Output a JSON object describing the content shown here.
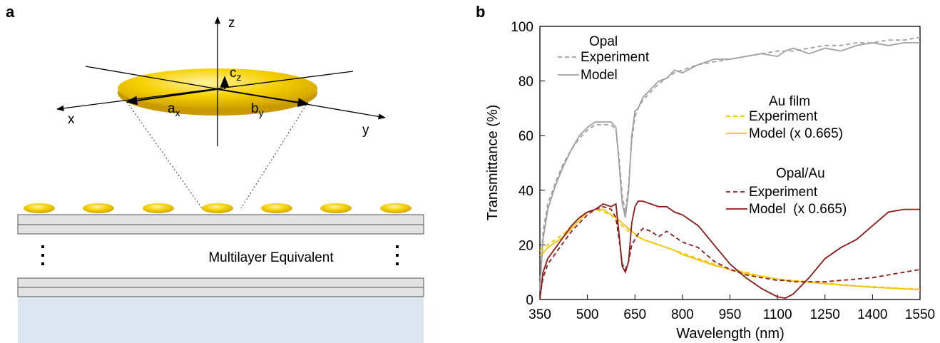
{
  "panel_a": {
    "label": "a",
    "axis_z": "z",
    "axis_x": "x",
    "axis_y": "y",
    "semi_axis_c": {
      "main": "c",
      "sub": "z"
    },
    "semi_axis_a": {
      "main": "a",
      "sub": "x"
    },
    "semi_axis_b": {
      "main": "b",
      "sub": "y"
    },
    "caption": "Multilayer Equivalent"
  },
  "chart_data": {
    "type": "line",
    "panel_label": "b",
    "x_label": "Wavelength (nm)",
    "y_label": "Transmittance (%)",
    "xlim": [
      350,
      1550
    ],
    "xticks": [
      350,
      500,
      650,
      800,
      950,
      1100,
      1250,
      1400,
      1550
    ],
    "ylim": [
      0,
      100
    ],
    "yticks": [
      0,
      20,
      40,
      60,
      80,
      100
    ],
    "x": [
      350,
      360,
      375,
      400,
      425,
      450,
      475,
      500,
      525,
      550,
      575,
      590,
      600,
      610,
      620,
      630,
      640,
      650,
      660,
      675,
      700,
      725,
      750,
      775,
      800,
      850,
      900,
      950,
      1000,
      1050,
      1100,
      1125,
      1150,
      1200,
      1250,
      1300,
      1350,
      1400,
      1450,
      1500,
      1550
    ],
    "series_groups": [
      {
        "title": "Opal",
        "series": [
          {
            "name": "Experiment",
            "color": "#a0a0a0",
            "dashed": true,
            "values": [
              5,
              25,
              35,
              43,
              50,
              55,
              59,
              62,
              64,
              64,
              64,
              62,
              52,
              38,
              32,
              42,
              58,
              67,
              70,
              73,
              76,
              79,
              81,
              83,
              84,
              86,
              87,
              88,
              89,
              90,
              91,
              91,
              91,
              92,
              93,
              93,
              94,
              94,
              95,
              95,
              96
            ]
          },
          {
            "name": "Model",
            "color": "#a0a0a0",
            "dashed": false,
            "values": [
              3,
              22,
              33,
              42,
              49,
              55,
              60,
              63,
              65,
              65,
              65,
              63,
              50,
              35,
              30,
              40,
              60,
              69,
              70,
              74,
              77,
              80,
              81,
              84,
              83,
              86,
              88,
              88,
              89,
              90,
              89,
              91,
              92,
              90,
              92,
              91,
              93,
              94,
              93,
              94,
              94
            ]
          }
        ]
      },
      {
        "title": "Au film",
        "series": [
          {
            "name": "Experiment",
            "color": "#f5c400",
            "dashed": true,
            "values": [
              18,
              19,
              20,
              22,
              24,
              27,
              30,
              32,
              33,
              32,
              31,
              29,
              28,
              27,
              26,
              25,
              25,
              24,
              23,
              22,
              21,
              20,
              19,
              18,
              17,
              15,
              13,
              11,
              10,
              8.5,
              7.5,
              7.2,
              7,
              6.5,
              6,
              5.5,
              5,
              4.7,
              4.3,
              4,
              3.8
            ]
          },
          {
            "name": "Model (x 0.665)",
            "color": "#f5c400",
            "dashed": false,
            "values": [
              16,
              17,
              19,
              21,
              23,
              26,
              29,
              32,
              33,
              33,
              31,
              30,
              29,
              28,
              27,
              26,
              25,
              24,
              23,
              22,
              21,
              20,
              19,
              18,
              16.5,
              14.5,
              12.5,
              11,
              9.5,
              8.5,
              7.5,
              7,
              6.8,
              6.3,
              5.8,
              5.3,
              4.9,
              4.5,
              4.2,
              3.9,
              3.6
            ]
          }
        ]
      },
      {
        "title": "Opal/Au",
        "series": [
          {
            "name": "Experiment",
            "color": "#8b1a1a",
            "dashed": true,
            "values": [
              1,
              8,
              13,
              17,
              21,
              25,
              28,
              31,
              33,
              34,
              33,
              30,
              22,
              13,
              11,
              14,
              20,
              22,
              24,
              26,
              25,
              23,
              25,
              23,
              21,
              19,
              14,
              11,
              9,
              8,
              7,
              7,
              6.5,
              6.5,
              6.5,
              7,
              7.5,
              8,
              9,
              10,
              11
            ]
          },
          {
            "name": "Model  (x 0.665)",
            "color": "#8b1a1a",
            "dashed": false,
            "values": [
              0,
              10,
              15,
              19,
              23,
              27,
              30,
              32,
              33,
              35,
              34,
              35,
              24,
              12,
              10,
              14,
              28,
              34,
              36,
              36,
              35,
              34,
              34,
              32,
              31,
              27,
              20,
              13,
              8,
              4,
              1,
              0.5,
              2,
              8,
              15,
              19,
              22,
              27,
              32,
              33,
              33
            ]
          }
        ]
      }
    ]
  }
}
